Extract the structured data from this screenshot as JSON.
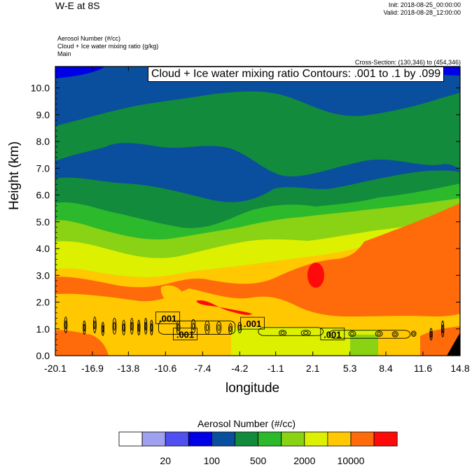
{
  "header": {
    "title": "W-E at 8S",
    "init": "Init: 2018-08-25_00:00:00",
    "valid": "Valid: 2018-08-28_12:00:00",
    "field_lines": [
      "Aerosol Number   (#/cc)",
      "Cloud + Ice water mixing ratio   (g/kg)",
      "Main"
    ],
    "cross_section": "Cross-Section: (130,346) to (454,346)"
  },
  "contour_info": "Cloud + Ice water mixing ratio Contours: .001 to .1 by .099",
  "colorbar": {
    "title": "Aerosol Number  (#/cc)",
    "colors": [
      "#ffffff",
      "#a0a0f0",
      "#5050f0",
      "#0000e6",
      "#0a4e9e",
      "#128b3c",
      "#2cb92c",
      "#8ad214",
      "#dcf000",
      "#ffc800",
      "#ff6a0a",
      "#ff0a0a"
    ],
    "tick_labels": [
      "20",
      "100",
      "500",
      "2000",
      "10000"
    ]
  },
  "chart_data": {
    "type": "contour",
    "xlabel": "longitude",
    "ylabel": "Height (km)",
    "x_ticks": [
      "-20.1",
      "-16.9",
      "-13.8",
      "-10.6",
      "-7.4",
      "-4.2",
      "-1.1",
      "2.1",
      "5.3",
      "8.4",
      "11.6",
      "14.8"
    ],
    "y_ticks": [
      "0.0",
      "1.0",
      "2.0",
      "3.0",
      "4.0",
      "5.0",
      "6.0",
      "7.0",
      "8.0",
      "9.0",
      "10.0"
    ],
    "xlim": [
      -20.1,
      14.8
    ],
    "ylim": [
      0,
      10.8
    ],
    "contour_labels": [
      {
        "text": ".001",
        "x": -10.4,
        "y": 1.4
      },
      {
        "text": ".001",
        "x": -8.9,
        "y": 0.8
      },
      {
        "text": ".001",
        "x": -3.1,
        "y": 1.2
      },
      {
        "text": ".001",
        "x": 3.8,
        "y": 0.8
      }
    ]
  }
}
